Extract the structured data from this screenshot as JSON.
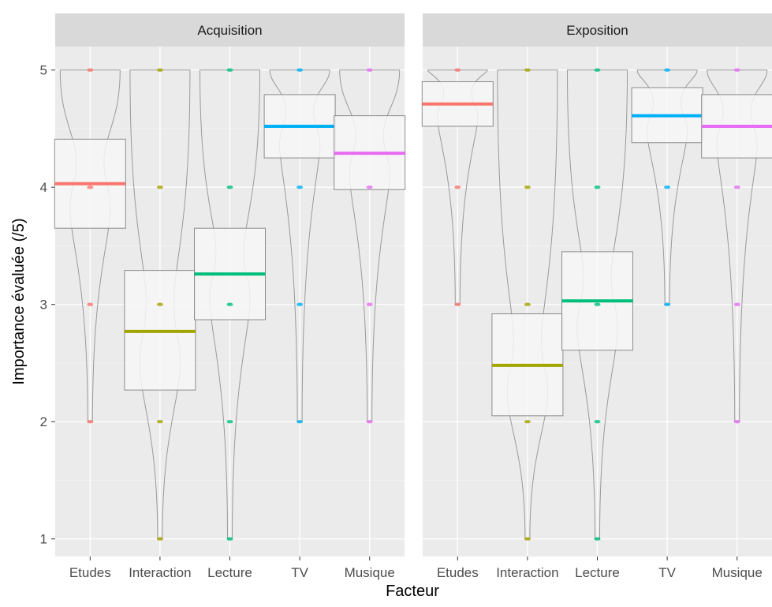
{
  "chart_data": {
    "type": "boxplot",
    "xlabel": "Facteur",
    "ylabel": "Importance évaluée (/5)",
    "ylim": [
      0.85,
      5.2
    ],
    "yticks": [
      1,
      2,
      3,
      4,
      5
    ],
    "categories": [
      "Etudes",
      "Interaction",
      "Lecture",
      "TV",
      "Musique"
    ],
    "colors": {
      "Etudes": "#F8766D",
      "Interaction": "#A3A500",
      "Lecture": "#00BF7D",
      "TV": "#00B0F6",
      "Musique": "#E76BF3"
    },
    "grid": true,
    "panels": [
      {
        "title": "Acquisition",
        "boxes": [
          {
            "category": "Etudes",
            "q1": 3.65,
            "q3": 4.41,
            "mean": 4.03,
            "min": 2,
            "max": 5,
            "points": [
              5,
              4,
              3,
              2
            ]
          },
          {
            "category": "Interaction",
            "q1": 2.27,
            "q3": 3.29,
            "mean": 2.77,
            "min": 1,
            "max": 5,
            "points": [
              5,
              4,
              3,
              2,
              1
            ]
          },
          {
            "category": "Lecture",
            "q1": 2.87,
            "q3": 3.65,
            "mean": 3.26,
            "min": 1,
            "max": 5,
            "points": [
              5,
              4,
              3,
              2,
              1
            ]
          },
          {
            "category": "TV",
            "q1": 4.25,
            "q3": 4.79,
            "mean": 4.52,
            "min": 2,
            "max": 5,
            "points": [
              5,
              4,
              3,
              2
            ]
          },
          {
            "category": "Musique",
            "q1": 3.98,
            "q3": 4.61,
            "mean": 4.29,
            "min": 2,
            "max": 5,
            "points": [
              5,
              4,
              3,
              2
            ]
          }
        ]
      },
      {
        "title": "Exposition",
        "boxes": [
          {
            "category": "Etudes",
            "q1": 4.52,
            "q3": 4.9,
            "mean": 4.71,
            "min": 3,
            "max": 5,
            "points": [
              5,
              4,
              3
            ]
          },
          {
            "category": "Interaction",
            "q1": 2.05,
            "q3": 2.92,
            "mean": 2.48,
            "min": 1,
            "max": 5,
            "points": [
              5,
              4,
              3,
              2,
              1
            ]
          },
          {
            "category": "Lecture",
            "q1": 2.61,
            "q3": 3.45,
            "mean": 3.03,
            "min": 1,
            "max": 5,
            "points": [
              5,
              4,
              3,
              2,
              1
            ]
          },
          {
            "category": "TV",
            "q1": 4.38,
            "q3": 4.85,
            "mean": 4.61,
            "min": 3,
            "max": 5,
            "points": [
              5,
              4,
              3
            ]
          },
          {
            "category": "Musique",
            "q1": 4.25,
            "q3": 4.79,
            "mean": 4.52,
            "min": 2,
            "max": 5,
            "points": [
              5,
              4,
              3,
              2
            ]
          }
        ]
      }
    ]
  }
}
